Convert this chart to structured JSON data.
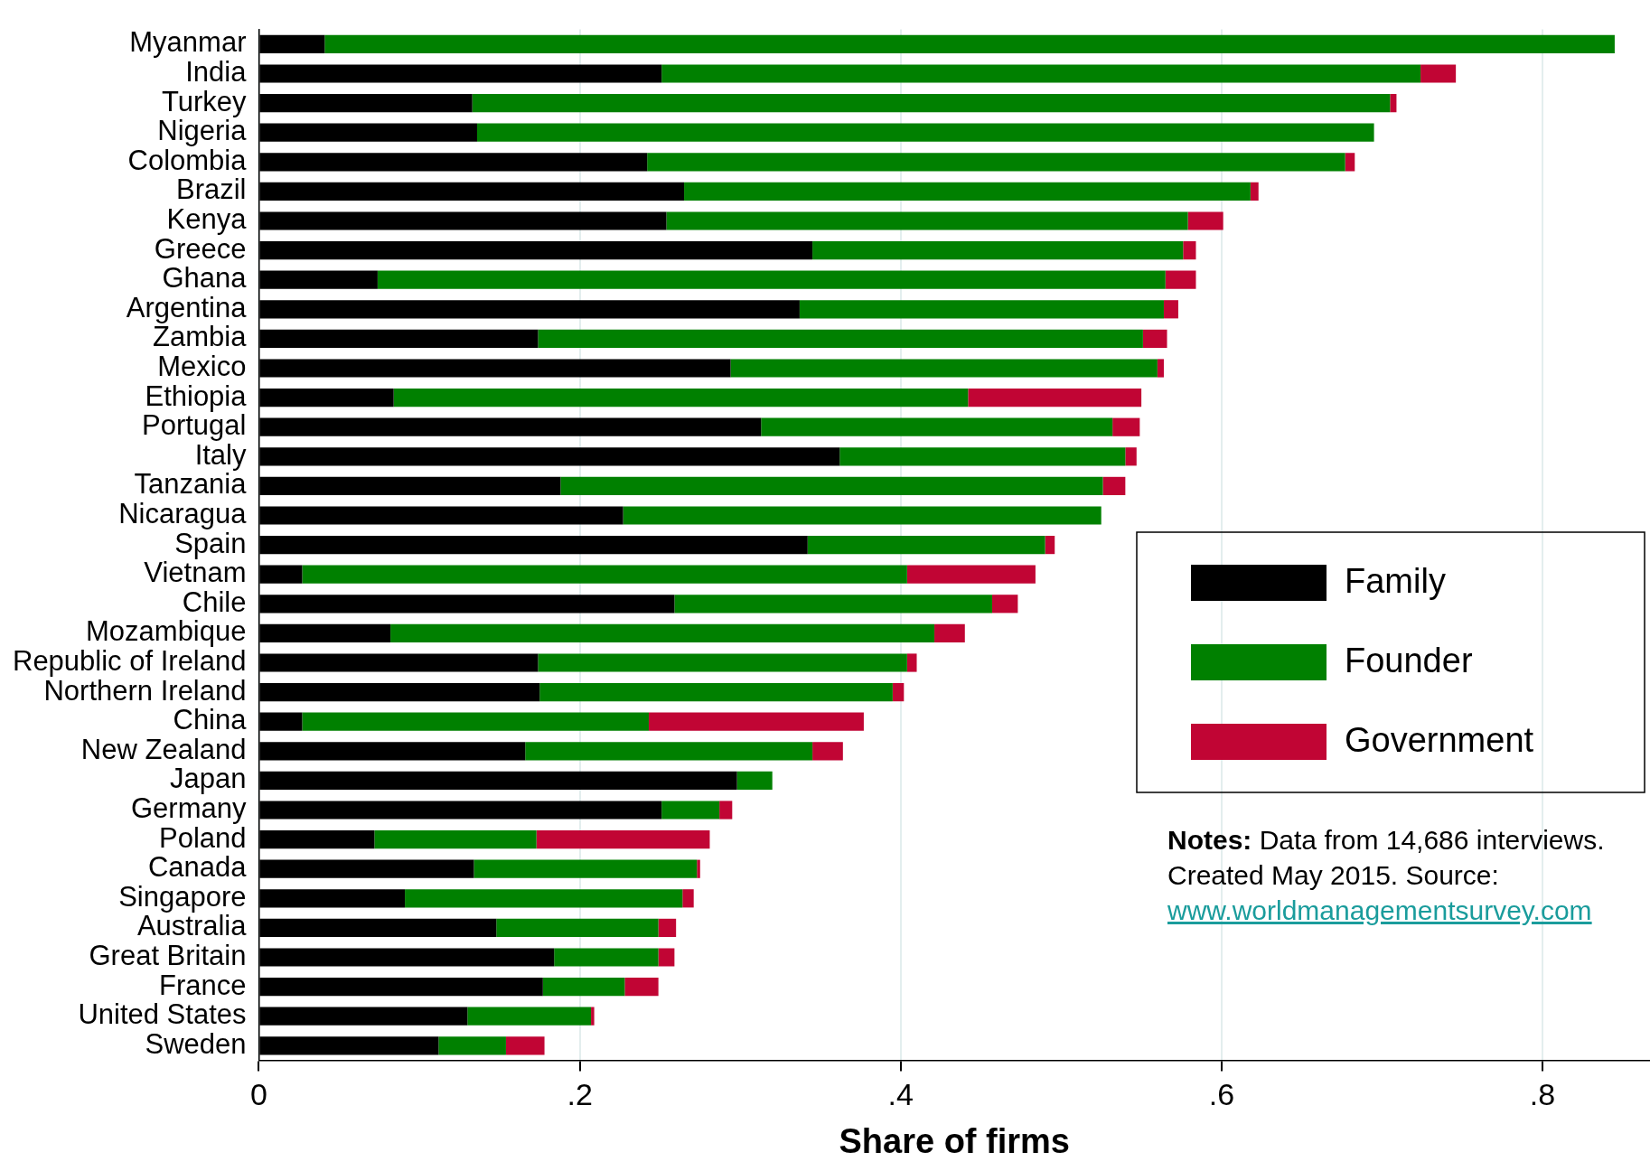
{
  "chart_data": {
    "type": "bar",
    "orientation": "horizontal",
    "stacked": true,
    "xlabel": "Share of firms",
    "categories": [
      "Myanmar",
      "India",
      "Turkey",
      "Nigeria",
      "Colombia",
      "Brazil",
      "Kenya",
      "Greece",
      "Ghana",
      "Argentina",
      "Zambia",
      "Mexico",
      "Ethiopia",
      "Portugal",
      "Italy",
      "Tanzania",
      "Nicaragua",
      "Spain",
      "Vietnam",
      "Chile",
      "Mozambique",
      "Republic of Ireland",
      "Northern Ireland",
      "China",
      "New Zealand",
      "Japan",
      "Germany",
      "Poland",
      "Canada",
      "Singapore",
      "Australia",
      "Great Britain",
      "France",
      "United States",
      "Sweden"
    ],
    "series": [
      {
        "name": "Family",
        "color": "#000000",
        "values": [
          0.041,
          0.251,
          0.133,
          0.136,
          0.242,
          0.265,
          0.254,
          0.345,
          0.074,
          0.337,
          0.174,
          0.294,
          0.084,
          0.313,
          0.362,
          0.188,
          0.227,
          0.342,
          0.027,
          0.259,
          0.082,
          0.174,
          0.175,
          0.027,
          0.166,
          0.298,
          0.251,
          0.072,
          0.134,
          0.091,
          0.148,
          0.184,
          0.177,
          0.13,
          0.112
        ]
      },
      {
        "name": "Founder",
        "color": "#008000",
        "values": [
          0.804,
          0.473,
          0.572,
          0.559,
          0.435,
          0.353,
          0.325,
          0.231,
          0.491,
          0.227,
          0.377,
          0.266,
          0.358,
          0.219,
          0.178,
          0.338,
          0.298,
          0.148,
          0.377,
          0.198,
          0.339,
          0.23,
          0.22,
          0.216,
          0.179,
          0.022,
          0.036,
          0.101,
          0.139,
          0.173,
          0.101,
          0.065,
          0.051,
          0.077,
          0.042
        ]
      },
      {
        "name": "Government",
        "color": "#c10534",
        "values": [
          0,
          0.022,
          0.004,
          0,
          0.006,
          0.005,
          0.022,
          0.008,
          0.019,
          0.009,
          0.015,
          0.004,
          0.108,
          0.017,
          0.007,
          0.014,
          0,
          0.006,
          0.08,
          0.016,
          0.019,
          0.006,
          0.007,
          0.134,
          0.019,
          0,
          0.008,
          0.108,
          0.002,
          0.007,
          0.011,
          0.01,
          0.021,
          0.002,
          0.024
        ]
      }
    ],
    "xlim": [
      0,
      0.867
    ],
    "xticks": [
      0,
      {
        "value": 0.2,
        "label": ".2"
      },
      {
        "value": 0.4,
        "label": ".4"
      },
      {
        "value": 0.6,
        "label": ".6"
      },
      {
        "value": 0.8,
        "label": ".8"
      }
    ],
    "grid": "x",
    "legend": "right",
    "annotations": [
      "Notes: Data from 14,686 interviews. Created May 2015. Source:",
      "www.worldmanagementsurvey.com"
    ]
  }
}
